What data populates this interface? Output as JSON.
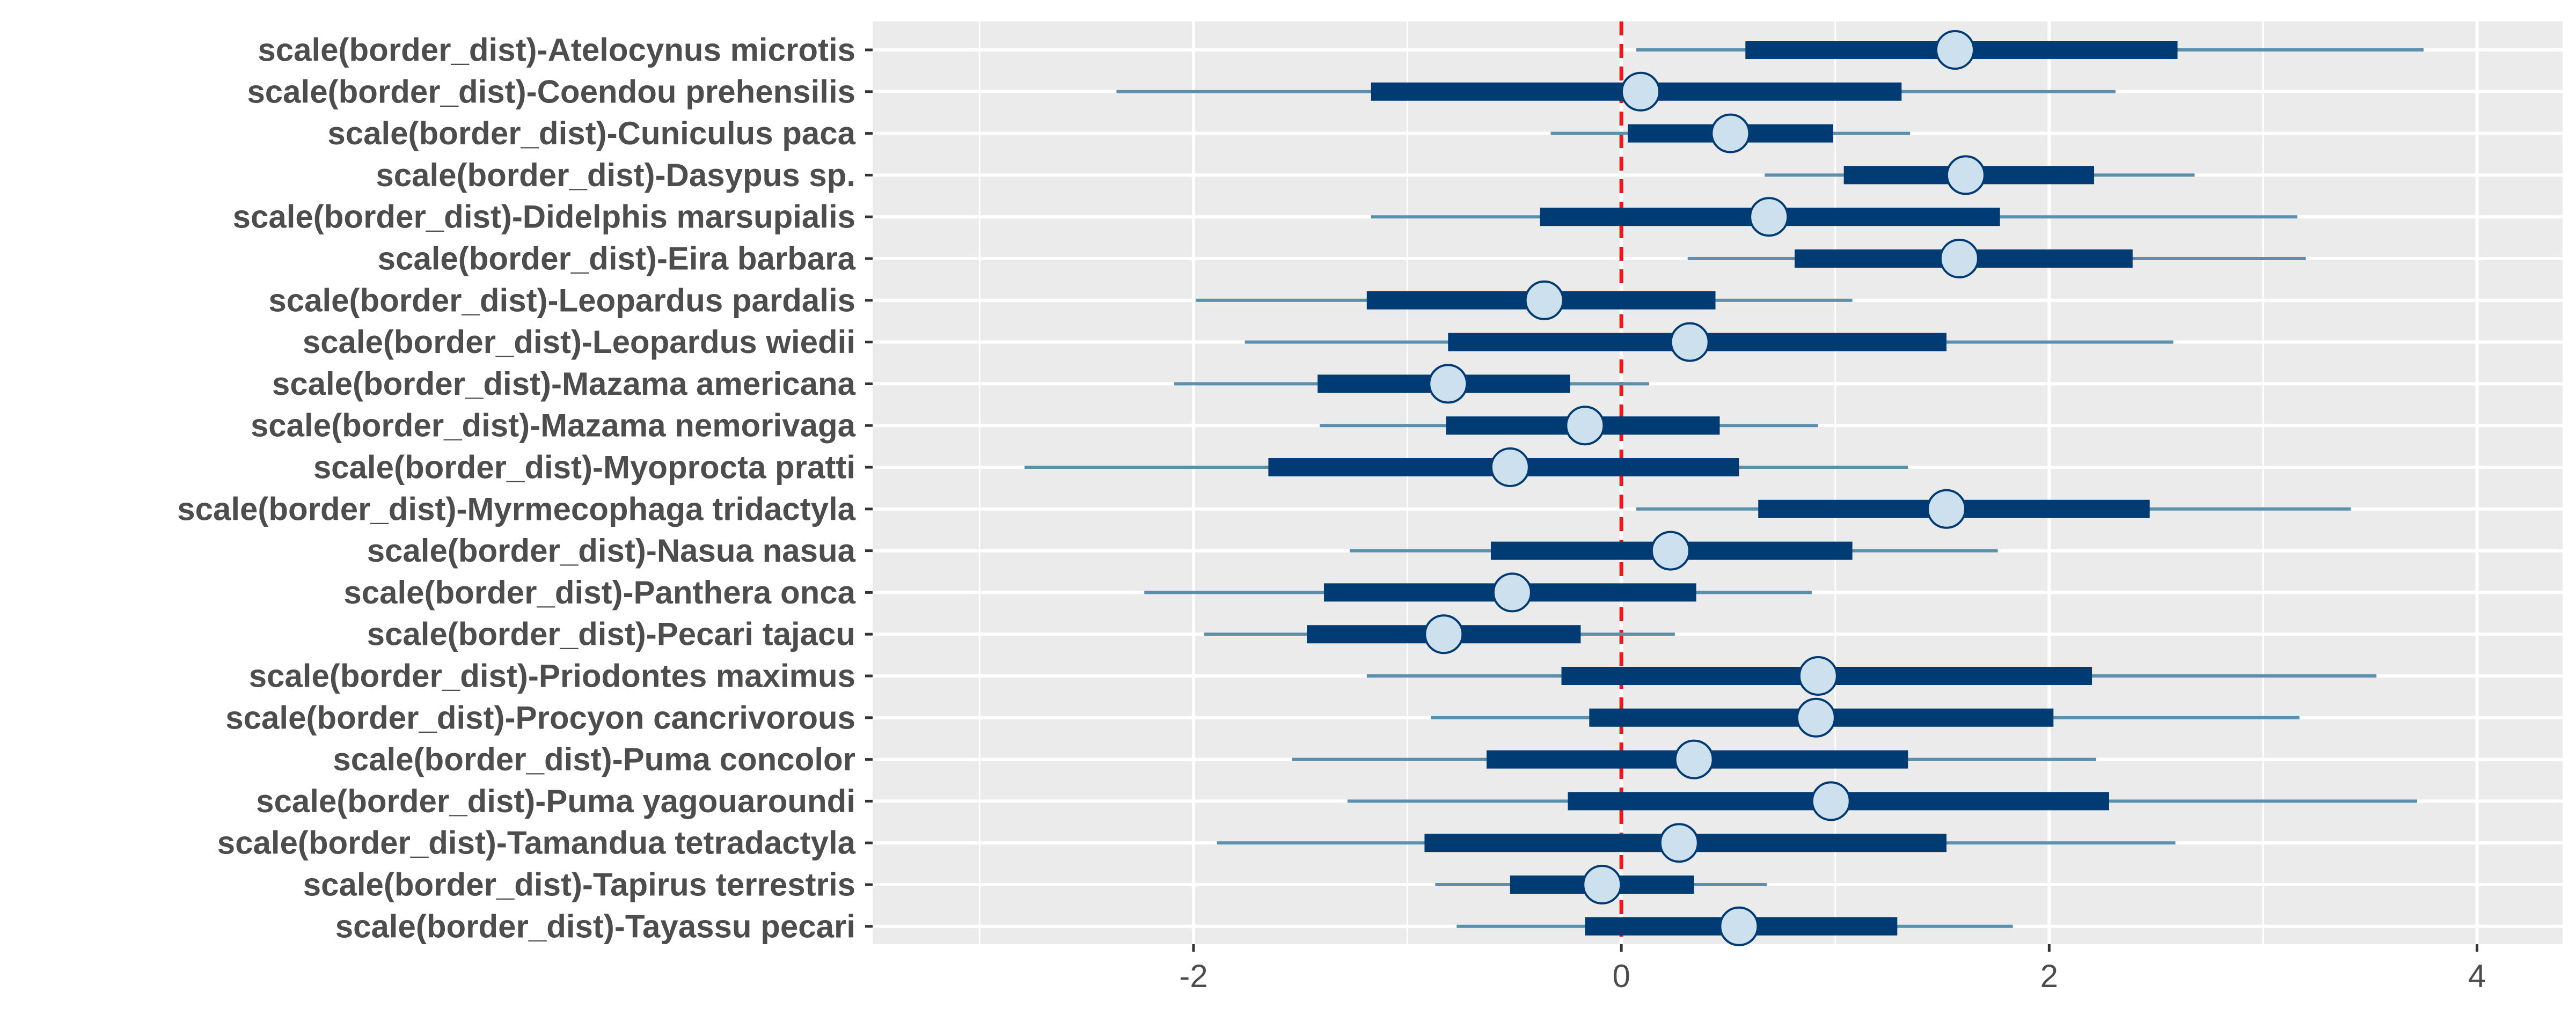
{
  "chart_data": {
    "type": "interval",
    "title": "",
    "xlabel": "",
    "ylabel": "",
    "xlim": [
      -3.5,
      4.4
    ],
    "x_ticks": [
      -2,
      0,
      2,
      4
    ],
    "x_tick_labels": [
      "-2",
      "0",
      "2",
      "4"
    ],
    "grid": true,
    "reference_line": {
      "x": 0,
      "color": "#e41a1c",
      "style": "dashed"
    },
    "colors": {
      "panel_background": "#ebebeb",
      "grid": "#ffffff",
      "inner_interval": "#003b73",
      "outer_interval": "#5a8fad",
      "point_fill": "#cde0ee",
      "point_stroke": "#003b73"
    },
    "categories": [
      "scale(border_dist)-Atelocynus microtis",
      "scale(border_dist)-Coendou prehensilis",
      "scale(border_dist)-Cuniculus paca",
      "scale(border_dist)-Dasypus sp.",
      "scale(border_dist)-Didelphis marsupialis",
      "scale(border_dist)-Eira barbara",
      "scale(border_dist)-Leopardus pardalis",
      "scale(border_dist)-Leopardus wiedii",
      "scale(border_dist)-Mazama americana",
      "scale(border_dist)-Mazama nemorivaga",
      "scale(border_dist)-Myoprocta pratti",
      "scale(border_dist)-Myrmecophaga tridactyla",
      "scale(border_dist)-Nasua nasua",
      "scale(border_dist)-Panthera onca",
      "scale(border_dist)-Pecari tajacu",
      "scale(border_dist)-Priodontes maximus",
      "scale(border_dist)-Procyon cancrivorous",
      "scale(border_dist)-Puma concolor",
      "scale(border_dist)-Puma yagouaroundi",
      "scale(border_dist)-Tamandua tetradactyla",
      "scale(border_dist)-Tapirus terrestris",
      "scale(border_dist)-Tayassu pecari"
    ],
    "point": [
      1.56,
      0.09,
      0.51,
      1.61,
      0.69,
      1.58,
      -0.36,
      0.32,
      -0.81,
      -0.17,
      -0.52,
      1.52,
      0.23,
      -0.51,
      -0.83,
      0.92,
      0.91,
      0.34,
      0.98,
      0.27,
      -0.09,
      0.55
    ],
    "inner_low": [
      0.58,
      -1.17,
      0.03,
      1.04,
      -0.38,
      0.81,
      -1.19,
      -0.81,
      -1.42,
      -0.82,
      -1.65,
      0.64,
      -0.61,
      -1.39,
      -1.47,
      -0.28,
      -0.15,
      -0.63,
      -0.25,
      -0.92,
      -0.52,
      -0.17
    ],
    "inner_high": [
      2.6,
      1.31,
      0.99,
      2.21,
      1.77,
      2.39,
      0.44,
      1.52,
      -0.24,
      0.46,
      0.55,
      2.47,
      1.08,
      0.35,
      -0.19,
      2.2,
      2.02,
      1.34,
      2.28,
      1.52,
      0.34,
      1.29
    ],
    "outer_low": [
      0.07,
      -2.36,
      -0.33,
      0.67,
      -1.17,
      0.31,
      -1.99,
      -1.76,
      -2.09,
      -1.41,
      -2.79,
      0.07,
      -1.27,
      -2.23,
      -1.95,
      -1.19,
      -0.89,
      -1.54,
      -1.28,
      -1.89,
      -0.87,
      -0.77
    ],
    "outer_high": [
      3.75,
      2.31,
      1.35,
      2.68,
      3.16,
      3.2,
      1.08,
      2.58,
      0.13,
      0.92,
      1.34,
      3.41,
      1.76,
      0.89,
      0.25,
      3.53,
      3.17,
      2.22,
      3.72,
      2.59,
      0.68,
      1.83
    ]
  }
}
